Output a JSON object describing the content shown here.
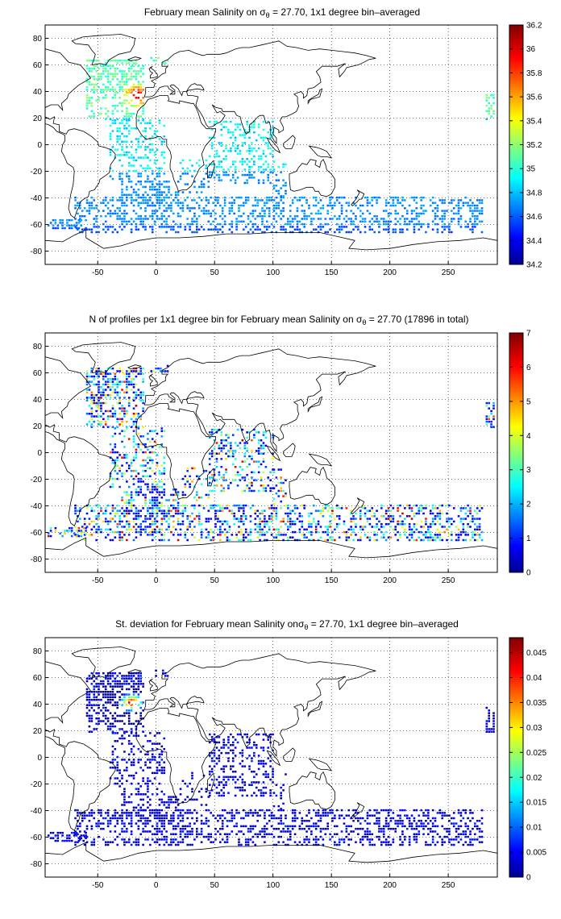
{
  "figure": {
    "panels": [
      {
        "title_pre": "February mean Salinity on σ",
        "title_sub": "θ",
        "title_post": " = 27.70, 1x1 degree bin–averaged",
        "x_ticks": [
          "-50",
          "0",
          "50",
          "100",
          "150",
          "200",
          "250"
        ],
        "y_ticks": [
          "80",
          "60",
          "40",
          "20",
          "0",
          "-20",
          "-40",
          "-60",
          "-80"
        ],
        "colorbar_ticks": [
          "36.2",
          "36",
          "35.8",
          "35.6",
          "35.4",
          "35.2",
          "35",
          "34.8",
          "34.6",
          "34.4",
          "34.2"
        ],
        "colorbar_range": [
          34.2,
          36.2
        ],
        "colormap": "jet",
        "field": "salinity"
      },
      {
        "title_pre": "N of profiles per 1x1 degree bin for February mean Salinity on σ",
        "title_sub": "θ",
        "title_post": " = 27.70 (17896 in total)",
        "x_ticks": [
          "-50",
          "0",
          "50",
          "100",
          "150",
          "200",
          "250"
        ],
        "y_ticks": [
          "80",
          "60",
          "40",
          "20",
          "0",
          "-20",
          "-40",
          "-60",
          "-80"
        ],
        "colorbar_ticks": [
          "7",
          "6",
          "5",
          "4",
          "3",
          "2",
          "1",
          "0"
        ],
        "colorbar_range": [
          0,
          7
        ],
        "colormap": "jet",
        "field": "count"
      },
      {
        "title_pre": "St. deviation for February mean Salinity onσ",
        "title_sub": "θ",
        "title_post": " = 27.70, 1x1 degree bin–averaged",
        "x_ticks": [
          "-50",
          "0",
          "50",
          "100",
          "150",
          "200",
          "250"
        ],
        "y_ticks": [
          "80",
          "60",
          "40",
          "20",
          "0",
          "-20",
          "-40",
          "-60",
          "-80"
        ],
        "colorbar_ticks": [
          "0.045",
          "0.04",
          "0.035",
          "0.03",
          "0.025",
          "0.02",
          "0.015",
          "0.01",
          "0.005",
          "0"
        ],
        "colorbar_range": [
          0,
          0.048
        ],
        "colormap": "jet",
        "field": "std"
      }
    ],
    "x_range": [
      -95,
      292
    ],
    "y_range": [
      -90,
      90
    ],
    "grid": true
  }
}
